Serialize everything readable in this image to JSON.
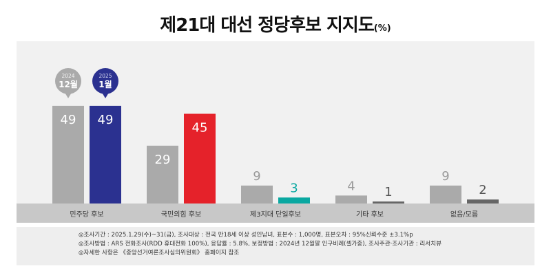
{
  "title": "제21대 대선 정당후보 지지도",
  "title_unit": "(%)",
  "colors": {
    "prev": "#aaaaaa",
    "minjoo": "#2b3190",
    "ppp": "#e5222a",
    "third": "#0aa8a1",
    "other": "#666666",
    "axis_band": "#c8c8c8"
  },
  "chart_data": {
    "type": "bar",
    "categories": [
      "민주당 후보",
      "국민의힘 후보",
      "제3지대 단일후보",
      "기타 후보",
      "없음/모름"
    ],
    "series": [
      {
        "name": "2024 12월",
        "values": [
          49,
          29,
          9,
          4,
          9
        ]
      },
      {
        "name": "2025 1월",
        "values": [
          49,
          45,
          3,
          1,
          2
        ]
      }
    ],
    "legend": [
      {
        "year": "2024",
        "month": "12월"
      },
      {
        "year": "2025",
        "month": "1월"
      }
    ],
    "ylim": [
      0,
      55
    ]
  },
  "notes": [
    "◎조사기간 : 2025.1.29(수)~31(금), 조사대상 : 전국 만18세 이상 성인남녀, 표본수 : 1,000명, 표본오차 : 95%신뢰수준 ±3.1%p",
    "◎조사방법 : ARS 전화조사(RDD 휴대전화 100%), 응답률 : 5.8%, 보정방법 : 2024년 12월말 인구비례(셀가중), 조사주관·조사기관 : 리서치뷰",
    "◎자세한 사항은 《중앙선거여론조사심의위원회》 홈페이지 참조"
  ]
}
